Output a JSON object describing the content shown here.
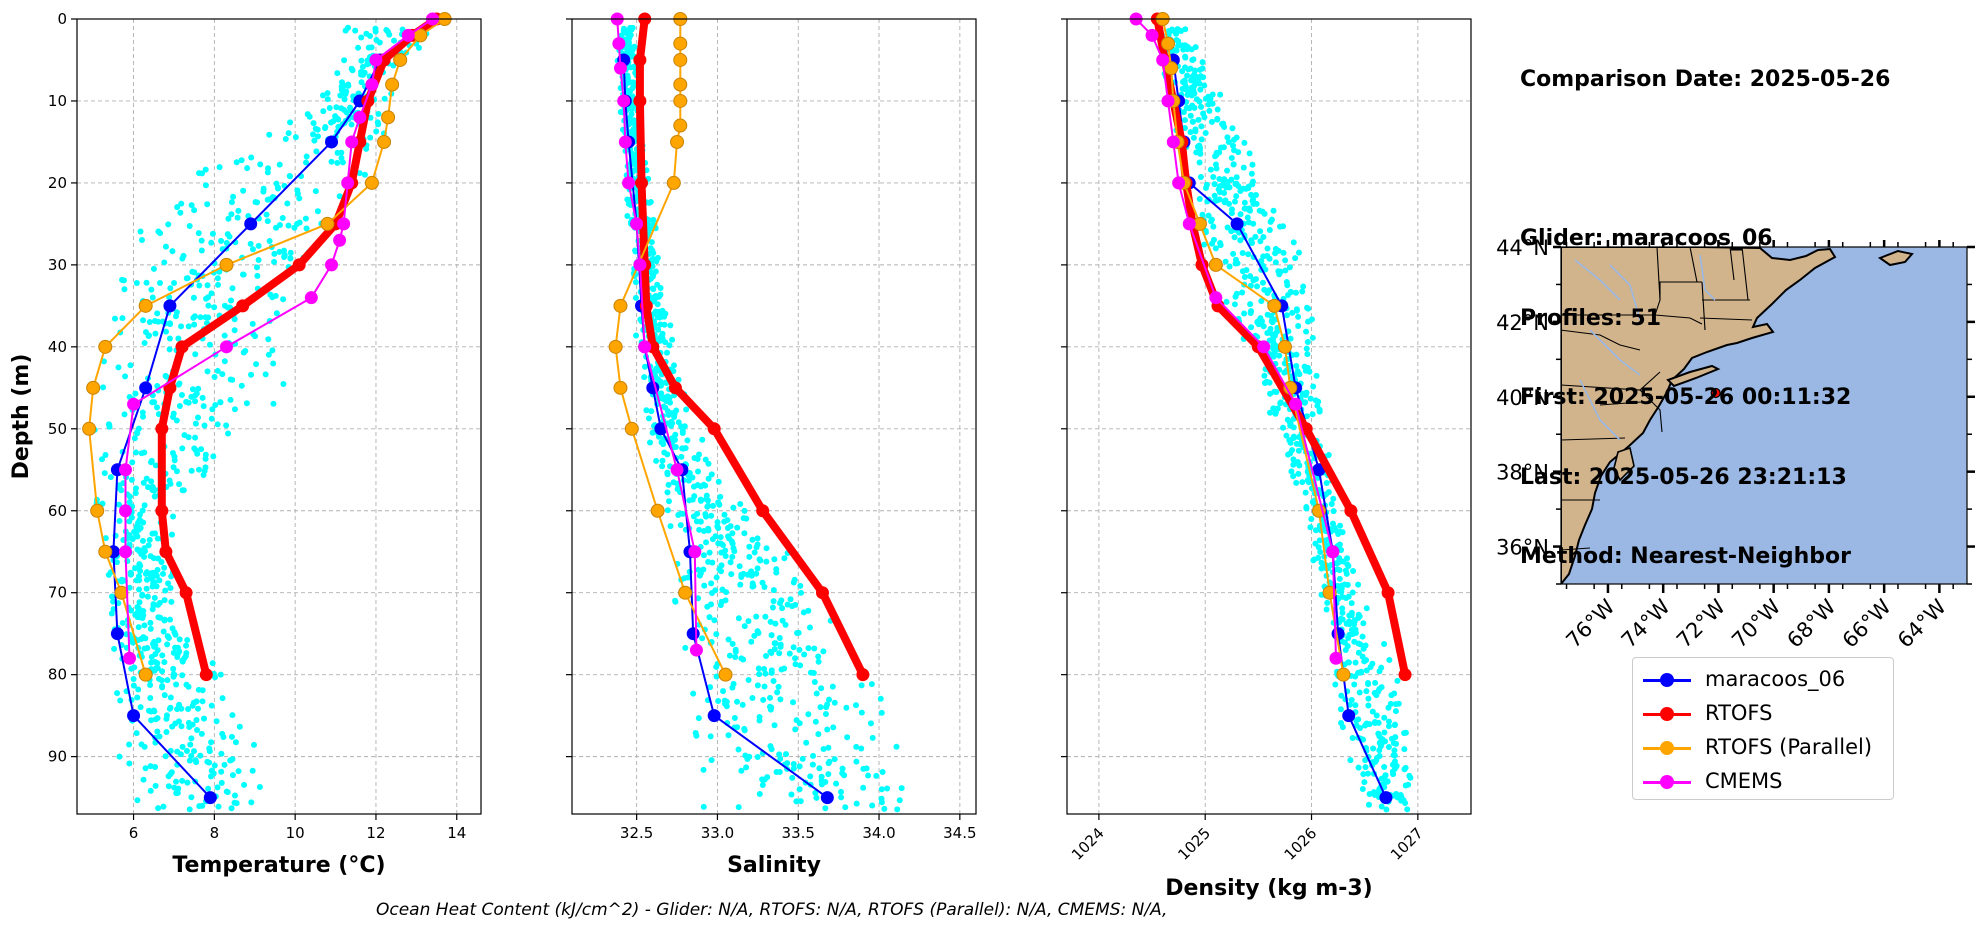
{
  "info": {
    "comparison_date": "Comparison Date: 2025-05-26",
    "glider": "Glider: maracoos_06",
    "profiles": "Profiles: 51",
    "first": "First: 2025-05-26 00:11:32",
    "last": "Last: 2025-05-26 23:21:13",
    "method": "Method: Nearest-Neighbor"
  },
  "caption": "Ocean Heat Content (kJ/cm^2) - Glider: N/A,  RTOFS: N/A,  RTOFS (Parallel): N/A,  CMEMS: N/A,",
  "colors": {
    "glider": "#0000ff",
    "rtofs": "#ff0000",
    "rtofs_parallel": "#ffa500",
    "cmems": "#ff00ff",
    "glider_scatter": "#00ffff",
    "ocean": "#9ab8e3",
    "land": "#d2b48c",
    "grid": "#b0b0b0"
  },
  "legend": [
    {
      "label": "maracoos_06",
      "series": "glider"
    },
    {
      "label": "RTOFS",
      "series": "rtofs"
    },
    {
      "label": "RTOFS (Parallel)",
      "series": "rtofs_parallel"
    },
    {
      "label": "CMEMS",
      "series": "cmems"
    }
  ],
  "chart_data": [
    {
      "type": "line",
      "xlabel": "Temperature (°C)",
      "ylabel": "Depth (m)",
      "xlim": [
        4.6,
        14.6
      ],
      "ylim": [
        97,
        0
      ],
      "xticks": [
        6,
        8,
        10,
        12,
        14
      ],
      "yticks": [
        0,
        10,
        20,
        30,
        40,
        50,
        60,
        70,
        80,
        90
      ],
      "grid": true,
      "series": [
        {
          "name": "maracoos_06",
          "key": "glider",
          "x": [
            12.1,
            11.6,
            10.9,
            8.9,
            6.9,
            6.3,
            5.6,
            5.5,
            5.6,
            6.0,
            7.9
          ],
          "y": [
            5,
            10,
            15,
            25,
            35,
            45,
            55,
            65,
            75,
            85,
            95
          ]
        },
        {
          "name": "RTOFS",
          "key": "rtofs",
          "x": [
            13.5,
            12.9,
            12.2,
            11.8,
            11.6,
            11.4,
            11.0,
            10.1,
            8.7,
            7.2,
            6.9,
            6.7,
            6.7,
            6.8,
            7.3,
            7.8
          ],
          "y": [
            0,
            2,
            5,
            10,
            15,
            20,
            25,
            30,
            35,
            40,
            45,
            50,
            60,
            65,
            70,
            80
          ]
        },
        {
          "name": "RTOFS (Parallel)",
          "key": "rtofs_parallel",
          "x": [
            13.7,
            13.1,
            12.6,
            12.4,
            12.3,
            12.2,
            11.9,
            10.8,
            8.3,
            6.3,
            5.3,
            5.0,
            4.9,
            5.1,
            5.3,
            5.7,
            6.3
          ],
          "y": [
            0,
            2,
            5,
            8,
            12,
            15,
            20,
            25,
            30,
            35,
            40,
            45,
            50,
            60,
            65,
            70,
            80
          ]
        },
        {
          "name": "CMEMS",
          "key": "cmems",
          "x": [
            13.4,
            12.8,
            12.0,
            11.9,
            11.6,
            11.4,
            11.3,
            11.2,
            11.1,
            10.9,
            10.4,
            8.3,
            6.0,
            5.8,
            5.8,
            5.8,
            5.9
          ],
          "y": [
            0,
            2,
            5,
            8,
            12,
            15,
            20,
            25,
            27,
            30,
            34,
            40,
            47,
            55,
            60,
            65,
            78
          ]
        }
      ],
      "scatter_profile": {
        "depth": [
          2,
          5,
          10,
          15,
          20,
          25,
          30,
          35,
          40,
          45,
          50,
          55,
          60,
          65,
          70,
          75,
          80,
          85,
          90,
          95
        ],
        "x_min": [
          11.2,
          11.0,
          10.5,
          9.0,
          7.0,
          6.2,
          5.6,
          5.3,
          5.0,
          4.9,
          4.9,
          5.0,
          5.1,
          5.2,
          5.3,
          5.4,
          5.5,
          5.5,
          5.6,
          5.6
        ],
        "x_max": [
          14.0,
          12.7,
          12.5,
          12.2,
          11.8,
          11.2,
          10.6,
          10.2,
          10.0,
          9.8,
          9.2,
          8.0,
          7.2,
          7.0,
          7.0,
          7.2,
          8.3,
          8.9,
          9.2,
          9.3
        ]
      }
    },
    {
      "type": "line",
      "xlabel": "Salinity",
      "ylabel": "",
      "xlim": [
        32.1,
        34.6
      ],
      "ylim": [
        97,
        0
      ],
      "xticks": [
        32.5,
        33.0,
        33.5,
        34.0,
        34.5
      ],
      "grid": true,
      "series": [
        {
          "name": "maracoos_06",
          "key": "glider",
          "x": [
            32.42,
            32.43,
            32.45,
            32.5,
            32.53,
            32.55,
            32.6,
            32.65,
            32.78,
            32.83,
            32.85,
            32.98,
            33.68
          ],
          "y": [
            5,
            10,
            15,
            25,
            35,
            40,
            45,
            50,
            55,
            65,
            75,
            85,
            95
          ]
        },
        {
          "name": "RTOFS",
          "key": "rtofs",
          "x": [
            32.55,
            32.52,
            32.52,
            32.53,
            32.55,
            32.56,
            32.6,
            32.74,
            32.98,
            33.28,
            33.65,
            33.9
          ],
          "y": [
            0,
            5,
            10,
            20,
            30,
            35,
            40,
            45,
            50,
            60,
            70,
            80
          ]
        },
        {
          "name": "RTOFS (Parallel)",
          "key": "rtofs_parallel",
          "x": [
            32.77,
            32.77,
            32.77,
            32.77,
            32.77,
            32.77,
            32.75,
            32.73,
            32.4,
            32.37,
            32.4,
            32.47,
            32.63,
            32.8,
            33.05
          ],
          "y": [
            0,
            3,
            5,
            8,
            10,
            13,
            15,
            20,
            35,
            40,
            45,
            50,
            60,
            70,
            80
          ]
        },
        {
          "name": "CMEMS",
          "key": "cmems",
          "x": [
            32.38,
            32.39,
            32.4,
            32.42,
            32.43,
            32.45,
            32.5,
            32.52,
            32.55,
            32.75,
            32.86,
            32.87
          ],
          "y": [
            0,
            3,
            6,
            10,
            15,
            20,
            25,
            30,
            40,
            55,
            65,
            77
          ]
        }
      ],
      "scatter_profile": {
        "depth": [
          2,
          5,
          10,
          15,
          20,
          25,
          30,
          35,
          40,
          45,
          50,
          55,
          60,
          65,
          70,
          75,
          80,
          85,
          90,
          95
        ],
        "x_min": [
          32.38,
          32.38,
          32.39,
          32.4,
          32.42,
          32.44,
          32.46,
          32.48,
          32.5,
          32.52,
          32.55,
          32.6,
          32.66,
          32.7,
          32.73,
          32.76,
          32.78,
          32.8,
          32.82,
          32.84
        ],
        "x_max": [
          32.5,
          32.5,
          32.52,
          32.55,
          32.58,
          32.62,
          32.66,
          32.7,
          32.74,
          32.8,
          32.88,
          32.98,
          33.2,
          33.45,
          33.62,
          33.82,
          34.0,
          34.15,
          34.25,
          34.3
        ]
      }
    },
    {
      "type": "line",
      "xlabel": "Density (kg m-3)",
      "ylabel": "",
      "xlim": [
        1023.7,
        1027.5
      ],
      "ylim": [
        97,
        0
      ],
      "xticks": [
        1024,
        1025,
        1026,
        1027
      ],
      "grid": true,
      "series": [
        {
          "name": "maracoos_06",
          "key": "glider",
          "x": [
            1024.7,
            1024.75,
            1024.8,
            1024.85,
            1025.3,
            1025.72,
            1025.85,
            1026.07,
            1026.2,
            1026.25,
            1026.35,
            1026.7
          ],
          "y": [
            5,
            10,
            15,
            20,
            25,
            35,
            45,
            55,
            65,
            75,
            85,
            95
          ]
        },
        {
          "name": "RTOFS",
          "key": "rtofs",
          "x": [
            1024.55,
            1024.62,
            1024.7,
            1024.78,
            1024.82,
            1024.88,
            1024.97,
            1025.12,
            1025.5,
            1025.95,
            1026.37,
            1026.72,
            1026.88
          ],
          "y": [
            0,
            5,
            10,
            15,
            20,
            25,
            30,
            35,
            40,
            50,
            60,
            70,
            80
          ]
        },
        {
          "name": "RTOFS (Parallel)",
          "key": "rtofs_parallel",
          "x": [
            1024.6,
            1024.65,
            1024.68,
            1024.7,
            1024.74,
            1024.8,
            1024.95,
            1025.1,
            1025.65,
            1025.75,
            1025.8,
            1026.07,
            1026.17,
            1026.3
          ],
          "y": [
            0,
            3,
            6,
            10,
            15,
            20,
            25,
            30,
            35,
            40,
            45,
            60,
            70,
            80
          ]
        },
        {
          "name": "CMEMS",
          "key": "cmems",
          "x": [
            1024.35,
            1024.5,
            1024.6,
            1024.65,
            1024.7,
            1024.75,
            1024.85,
            1025.1,
            1025.55,
            1025.85,
            1026.2,
            1026.23
          ],
          "y": [
            0,
            2,
            5,
            10,
            15,
            20,
            25,
            34,
            40,
            47,
            65,
            78
          ]
        }
      ],
      "scatter_profile": {
        "depth": [
          2,
          5,
          10,
          15,
          20,
          25,
          30,
          35,
          40,
          45,
          50,
          55,
          60,
          65,
          70,
          75,
          80,
          85,
          90,
          95
        ],
        "x_min": [
          1024.5,
          1024.55,
          1024.62,
          1024.7,
          1024.8,
          1024.92,
          1025.05,
          1025.2,
          1025.35,
          1025.5,
          1025.65,
          1025.8,
          1025.95,
          1026.0,
          1026.05,
          1026.1,
          1026.15,
          1026.25,
          1026.35,
          1026.45
        ],
        "x_max": [
          1024.9,
          1025.0,
          1025.2,
          1025.4,
          1025.6,
          1025.8,
          1025.95,
          1026.0,
          1026.05,
          1026.1,
          1026.15,
          1026.2,
          1026.25,
          1026.35,
          1026.5,
          1026.65,
          1026.8,
          1026.9,
          1026.95,
          1027.0
        ]
      }
    },
    {
      "type": "map",
      "lon_range": [
        -77.7,
        -63.0
      ],
      "lat_range": [
        35.0,
        44.0
      ],
      "lon_ticks": [
        -76,
        -74,
        -72,
        -70,
        -68,
        -66,
        -64
      ],
      "lon_tick_labels": [
        "76°W",
        "74°W",
        "72°W",
        "70°W",
        "68°W",
        "66°W",
        "64°W"
      ],
      "lat_ticks": [
        36,
        38,
        40,
        42,
        44
      ],
      "lat_tick_labels": [
        "36°N",
        "38°N",
        "40°N",
        "42°N",
        "44°N"
      ],
      "glider_position": {
        "lon": -72.1,
        "lat": 40.1
      }
    }
  ]
}
